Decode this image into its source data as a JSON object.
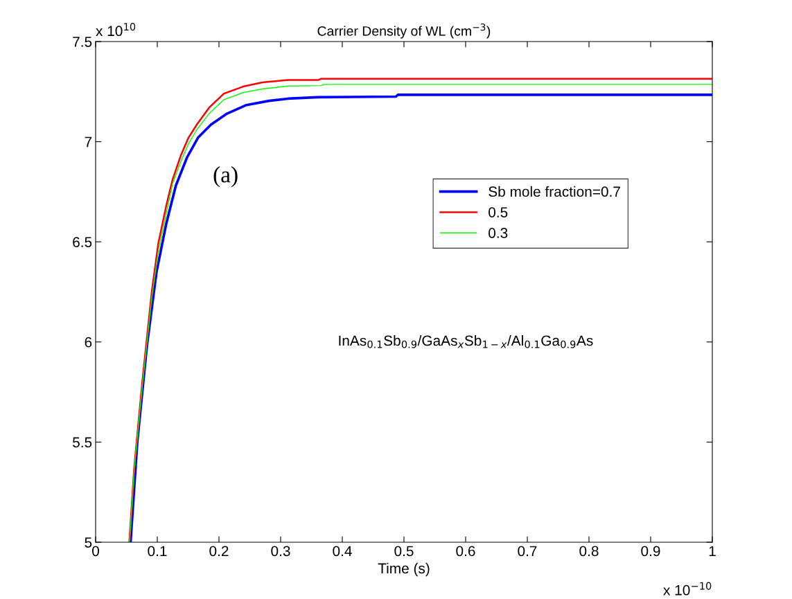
{
  "chart_data": {
    "type": "line",
    "title": "Carrier Density of WL (cm$^{−3}$)",
    "xlabel": "Time (s)",
    "xlim": [
      0,
      1
    ],
    "xticks": [
      0,
      0.1,
      0.2,
      0.3,
      0.4,
      0.5,
      0.6,
      0.7,
      0.8,
      0.9,
      1
    ],
    "ylim": [
      5,
      7.5
    ],
    "yticks": [
      5,
      5.5,
      6,
      6.5,
      7,
      7.5
    ],
    "grid": false,
    "legend": "top right",
    "marker": "none",
    "line_style": "solid",
    "annotations": [
      "x 10$^{10}$",
      "x 10$^{−10}$",
      "(a)",
      "InAs$_{0.1}$Sb$_{0.9}$/GaAs$_{x}$Sb$_{1−x}$/Al$_{0.1}$Ga$_{0.9}$As"
    ],
    "series": [
      {
        "name": "Sb mole fraction=0.7",
        "color": "#0000ff",
        "x": [
          0.0567,
          0.0676,
          0.0832,
          0.0988,
          0.1145,
          0.13,
          0.148,
          0.166,
          0.187,
          0.213,
          0.2445,
          0.281,
          0.312,
          0.36,
          0.487,
          0.49,
          1
        ],
        "values": [
          5.0,
          5.5,
          5.98,
          6.35,
          6.59,
          6.78,
          6.92,
          7.02,
          7.085,
          7.14,
          7.183,
          7.204,
          7.215,
          7.222,
          7.225,
          7.234,
          7.234
        ]
      },
      {
        "name": "0.5",
        "color": "#ff0000",
        "x": [
          0.0546,
          0.0625,
          0.0753,
          0.091,
          0.1015,
          0.1145,
          0.1247,
          0.138,
          0.1506,
          0.164,
          0.184,
          0.208,
          0.239,
          0.27,
          0.312,
          0.361,
          0.365,
          1
        ],
        "values": [
          5.0,
          5.37,
          5.79,
          6.25,
          6.49,
          6.68,
          6.81,
          6.93,
          7.02,
          7.085,
          7.17,
          7.24,
          7.275,
          7.296,
          7.308,
          7.308,
          7.314,
          7.314
        ]
      },
      {
        "name": "0.3",
        "color": "#00ff00",
        "x": [
          0.055,
          0.0625,
          0.0753,
          0.091,
          0.1015,
          0.1145,
          0.1247,
          0.138,
          0.1506,
          0.164,
          0.184,
          0.208,
          0.239,
          0.27,
          0.312,
          0.365,
          0.37,
          1
        ],
        "values": [
          5.0,
          5.36,
          5.77,
          6.22,
          6.45,
          6.64,
          6.79,
          6.9,
          6.99,
          7.06,
          7.14,
          7.21,
          7.245,
          7.263,
          7.278,
          7.28,
          7.286,
          7.286
        ]
      }
    ]
  }
}
